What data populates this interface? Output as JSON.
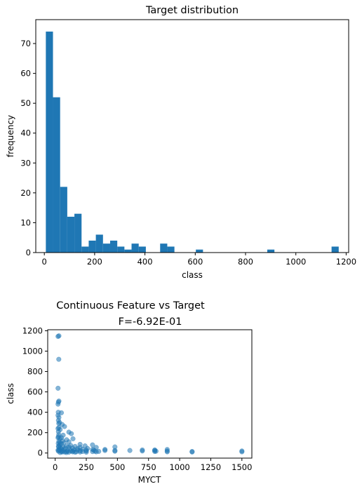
{
  "chart_data": [
    {
      "type": "bar",
      "title": "Target distribution",
      "xlabel": "class",
      "ylabel": "frequency",
      "xlim": [
        -34,
        1210
      ],
      "ylim": [
        0,
        78
      ],
      "xticks": [
        0,
        200,
        400,
        600,
        800,
        1000,
        1200
      ],
      "yticks": [
        0,
        10,
        20,
        30,
        40,
        50,
        60,
        70
      ],
      "bin_width": 28.4,
      "bin_start": 6,
      "counts": [
        74,
        52,
        22,
        12,
        13,
        2,
        4,
        6,
        3,
        4,
        2,
        1,
        3,
        2,
        0,
        0,
        3,
        2,
        0,
        0,
        0,
        1,
        0,
        0,
        0,
        0,
        0,
        0,
        0,
        0,
        0,
        1,
        0,
        0,
        0,
        0,
        0,
        0,
        0,
        0,
        2
      ],
      "color": "#1f77b4",
      "grid": false
    },
    {
      "type": "scatter",
      "suptitle": "Continuous Feature vs Target",
      "title": "F=-6.92E-01",
      "xlabel": "MYCT",
      "ylabel": "class",
      "xlim": [
        -60,
        1580
      ],
      "ylim": [
        -50,
        1210
      ],
      "xticks": [
        0,
        250,
        500,
        750,
        1000,
        1250,
        1500
      ],
      "yticks": [
        0,
        200,
        400,
        600,
        800,
        1000,
        1200
      ],
      "color": "#1f77b4",
      "alpha": 0.55,
      "grid": false,
      "points": [
        [
          23,
          1144
        ],
        [
          30,
          1150
        ],
        [
          29,
          920
        ],
        [
          23,
          636
        ],
        [
          26,
          500
        ],
        [
          30,
          510
        ],
        [
          23,
          480
        ],
        [
          25,
          400
        ],
        [
          50,
          395
        ],
        [
          23,
          370
        ],
        [
          30,
          350
        ],
        [
          26,
          320
        ],
        [
          35,
          300
        ],
        [
          29,
          290
        ],
        [
          56,
          280
        ],
        [
          75,
          260
        ],
        [
          30,
          250
        ],
        [
          23,
          240
        ],
        [
          40,
          230
        ],
        [
          110,
          205
        ],
        [
          130,
          190
        ],
        [
          29,
          180
        ],
        [
          64,
          175
        ],
        [
          26,
          160
        ],
        [
          50,
          150
        ],
        [
          38,
          140
        ],
        [
          143,
          140
        ],
        [
          92,
          130
        ],
        [
          60,
          120
        ],
        [
          30,
          115
        ],
        [
          110,
          110
        ],
        [
          70,
          100
        ],
        [
          25,
          95
        ],
        [
          50,
          90
        ],
        [
          200,
          85
        ],
        [
          35,
          80
        ],
        [
          300,
          80
        ],
        [
          125,
          75
        ],
        [
          90,
          70
        ],
        [
          240,
          70
        ],
        [
          26,
          65
        ],
        [
          160,
          65
        ],
        [
          60,
          60
        ],
        [
          110,
          60
        ],
        [
          200,
          55
        ],
        [
          330,
          55
        ],
        [
          40,
          50
        ],
        [
          80,
          50
        ],
        [
          140,
          48
        ],
        [
          180,
          45
        ],
        [
          260,
          45
        ],
        [
          480,
          60
        ],
        [
          50,
          42
        ],
        [
          115,
          40
        ],
        [
          220,
          38
        ],
        [
          300,
          35
        ],
        [
          400,
          35
        ],
        [
          30,
          35
        ],
        [
          75,
          33
        ],
        [
          150,
          30
        ],
        [
          180,
          30
        ],
        [
          250,
          28
        ],
        [
          310,
          30
        ],
        [
          400,
          25
        ],
        [
          480,
          25
        ],
        [
          600,
          25
        ],
        [
          700,
          30
        ],
        [
          800,
          30
        ],
        [
          900,
          35
        ],
        [
          35,
          25
        ],
        [
          60,
          22
        ],
        [
          100,
          20
        ],
        [
          125,
          20
        ],
        [
          143,
          18
        ],
        [
          200,
          22
        ],
        [
          250,
          20
        ],
        [
          320,
          18
        ],
        [
          350,
          16
        ],
        [
          480,
          18
        ],
        [
          700,
          20
        ],
        [
          800,
          25
        ],
        [
          810,
          18
        ],
        [
          900,
          20
        ],
        [
          1100,
          15
        ],
        [
          1500,
          20
        ],
        [
          26,
          18
        ],
        [
          50,
          15
        ],
        [
          90,
          15
        ],
        [
          140,
          12
        ],
        [
          170,
          12
        ],
        [
          220,
          15
        ],
        [
          300,
          14
        ],
        [
          330,
          12
        ],
        [
          800,
          15
        ],
        [
          900,
          12
        ],
        [
          1100,
          10
        ],
        [
          1500,
          12
        ],
        [
          56,
          10
        ],
        [
          75,
          10
        ],
        [
          110,
          8
        ],
        [
          160,
          8
        ],
        [
          200,
          10
        ],
        [
          250,
          8
        ],
        [
          90,
          5
        ],
        [
          40,
          5
        ],
        [
          23,
          28
        ],
        [
          29,
          60
        ],
        [
          38,
          100
        ],
        [
          23,
          150
        ],
        [
          26,
          210
        ]
      ]
    }
  ]
}
